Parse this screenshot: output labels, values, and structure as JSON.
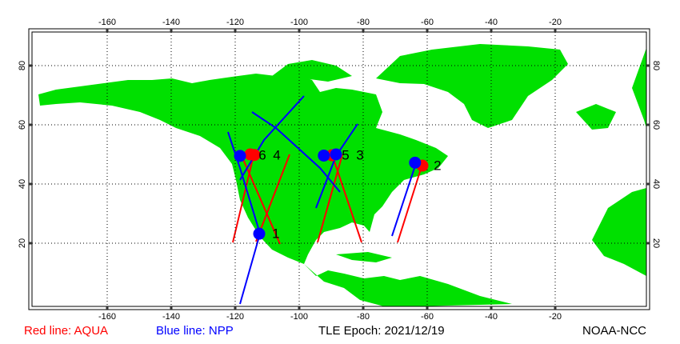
{
  "map": {
    "xticks": [
      -160,
      -140,
      -120,
      -100,
      -80,
      -60,
      -40,
      -20
    ],
    "yticks": [
      20,
      40,
      60,
      80
    ],
    "markers": [
      {
        "color": "#ff0000",
        "lon": -115.3,
        "lat": 50
      },
      {
        "color": "#ff0000",
        "lon": -114,
        "lat": 49.8
      },
      {
        "color": "#0000ff",
        "lon": -118.5,
        "lat": 49.5
      },
      {
        "color": "#0000ff",
        "lon": -112.5,
        "lat": 23.2
      },
      {
        "color": "#ff0000",
        "lon": -61.5,
        "lat": 46.2
      },
      {
        "color": "#0000ff",
        "lon": -63.8,
        "lat": 47.2
      },
      {
        "color": "#ff0000",
        "lon": -89.8,
        "lat": 49.7
      },
      {
        "color": "#0000ff",
        "lon": -88.5,
        "lat": 50
      },
      {
        "color": "#0000ff",
        "lon": -92.3,
        "lat": 49.6
      }
    ],
    "labels": [
      {
        "text": "6",
        "lon": -111.5,
        "lat": 49.5
      },
      {
        "text": "4",
        "lon": -107,
        "lat": 49.5
      },
      {
        "text": "5",
        "lon": -85.5,
        "lat": 49.5
      },
      {
        "text": "3",
        "lon": -81,
        "lat": 49.5
      },
      {
        "text": "2",
        "lon": -56.8,
        "lat": 46
      },
      {
        "text": "1",
        "lon": -107.3,
        "lat": 23
      }
    ]
  },
  "footer": {
    "red": "Red line: AQUA",
    "blue": "Blue line: NPP",
    "epoch": "TLE Epoch: 2021/12/19",
    "source": "NOAA-NCC"
  }
}
